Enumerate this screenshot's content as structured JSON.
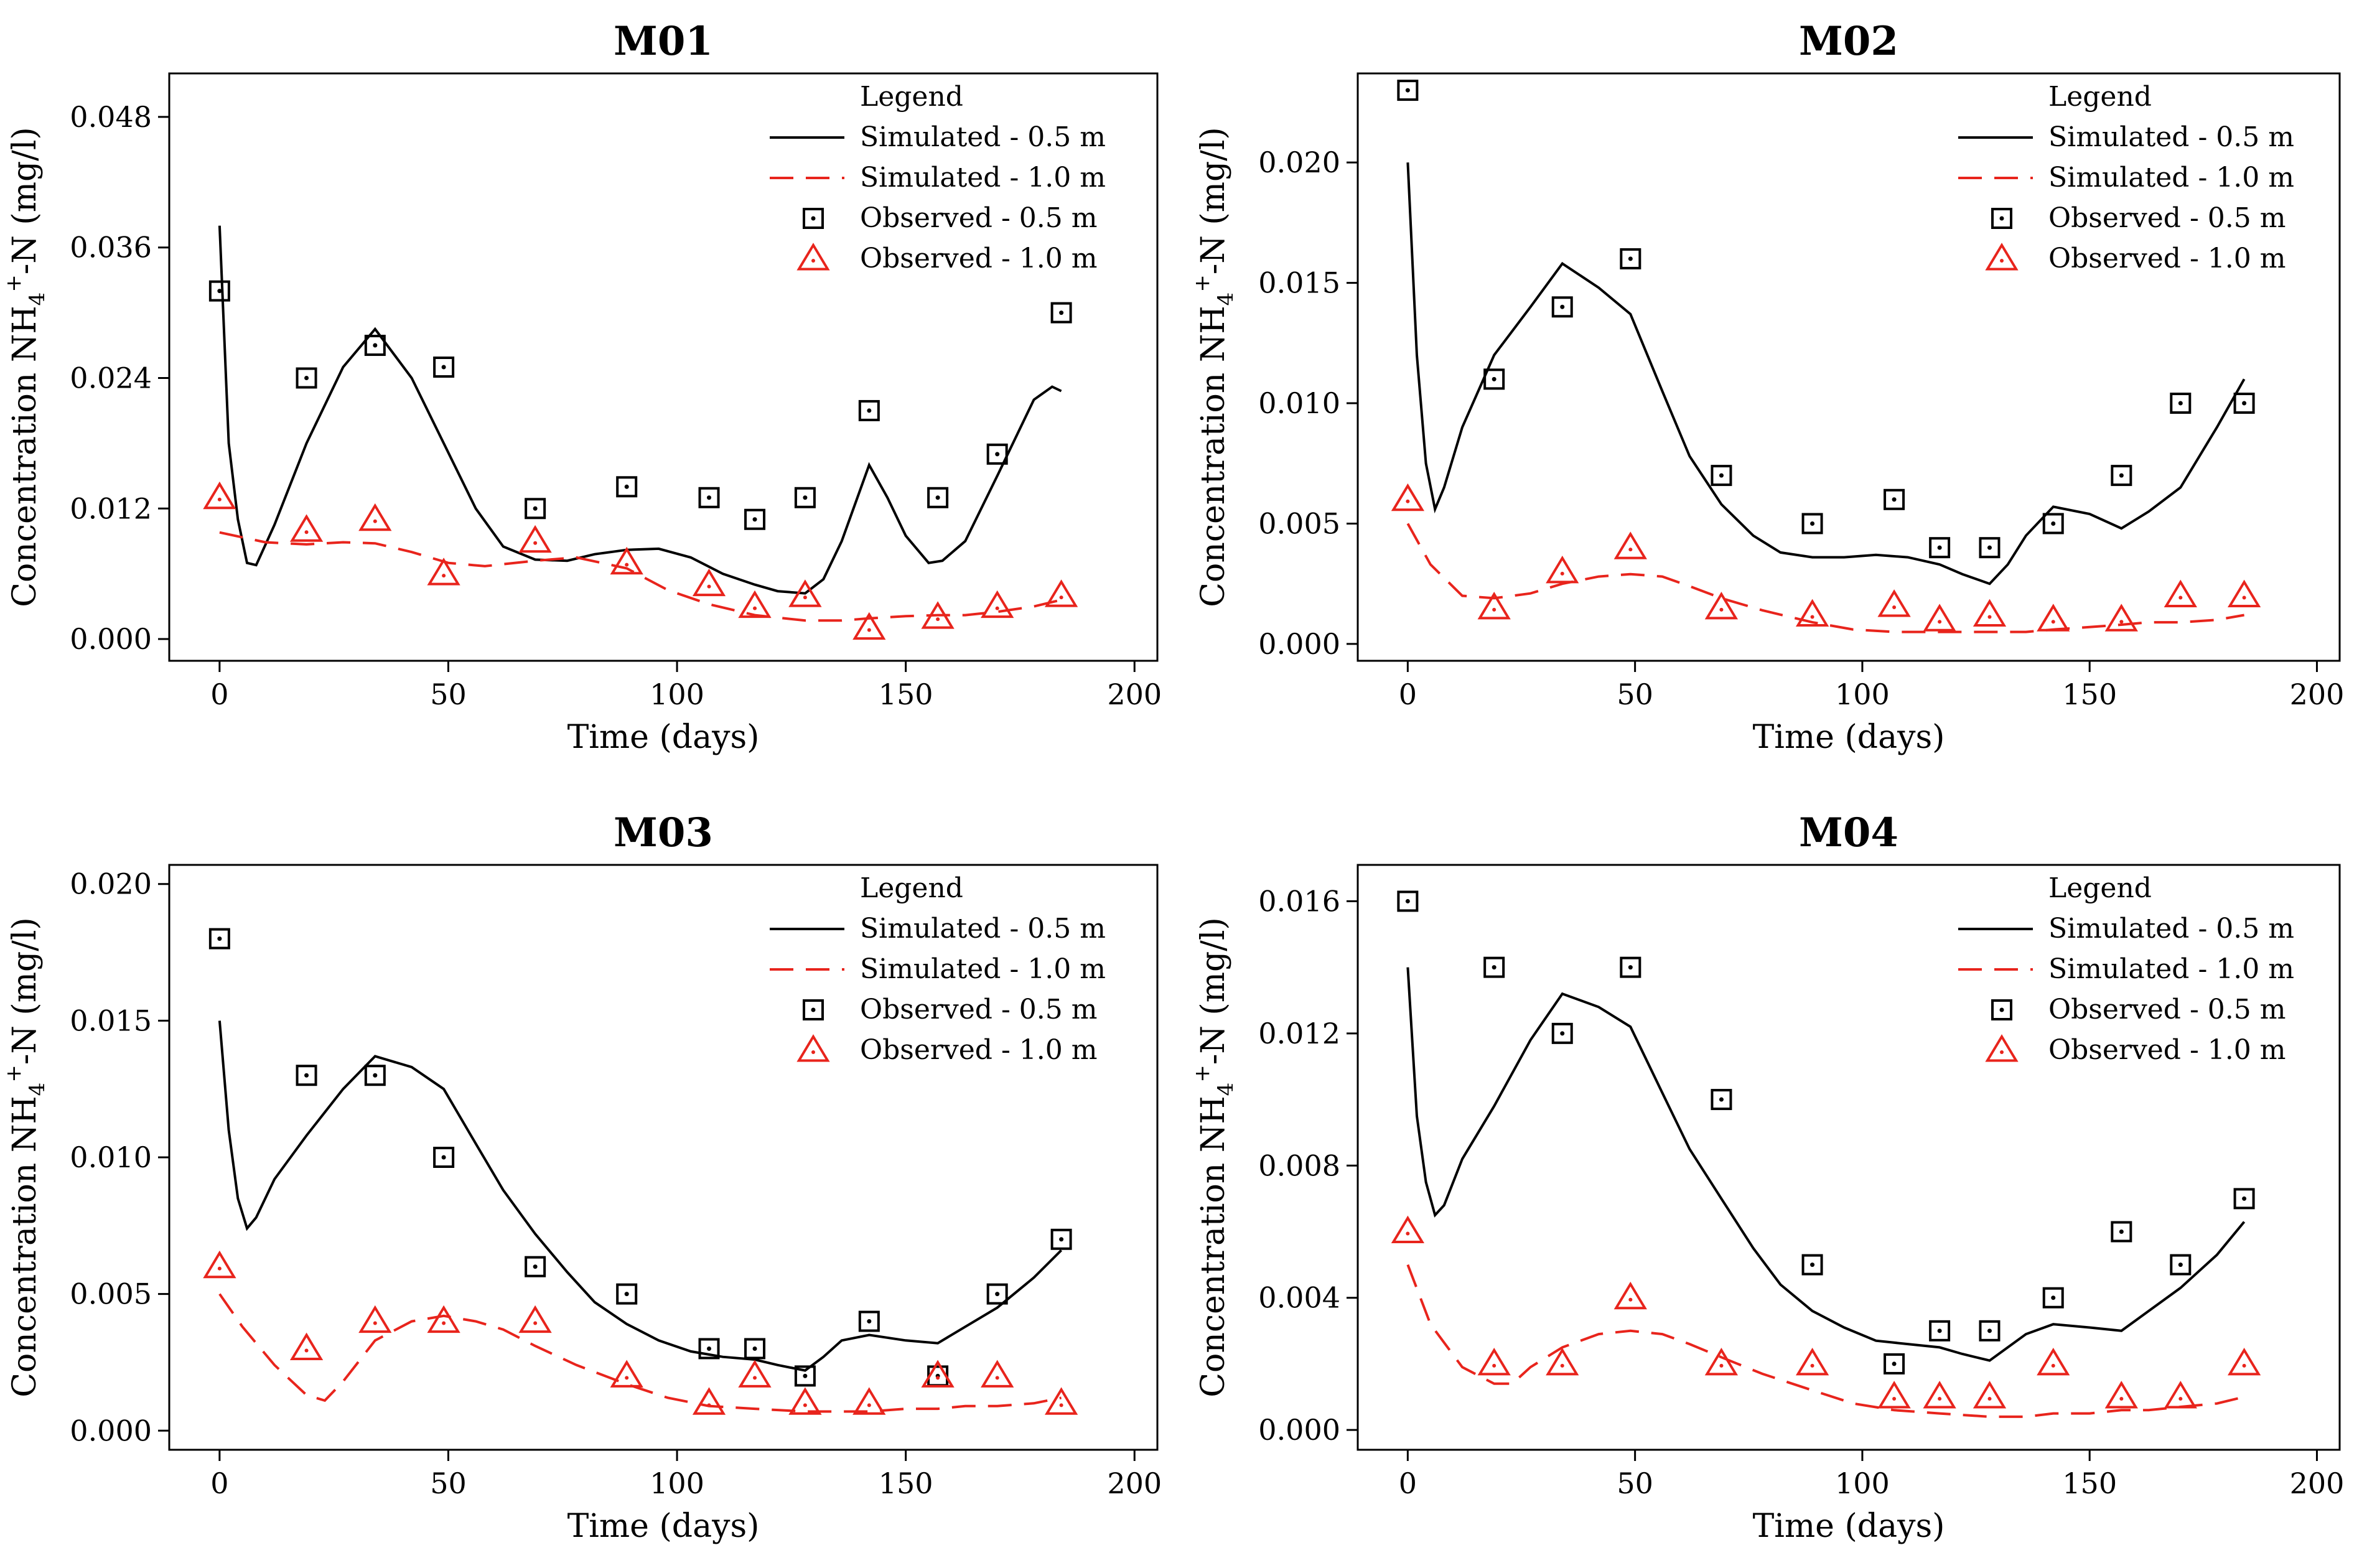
{
  "legend": {
    "title": "Legend",
    "entries": [
      "Simulated - 0.5 m",
      "Simulated - 1.0 m",
      "Observed - 0.5 m",
      "Observed - 1.0 m"
    ]
  },
  "colors": {
    "sim_05": "#000000",
    "sim_10": "#e8241c",
    "obs_05": "#000000",
    "obs_10": "#e8241c"
  },
  "chart_data": [
    {
      "type": "line",
      "title": "M01",
      "xlabel": "Time (days)",
      "ylabel": "Concentration NH4+-N (mg/l)",
      "xlim": [
        -11,
        205
      ],
      "ylim": [
        -0.002,
        0.052
      ],
      "xticks": [
        0,
        50,
        100,
        150,
        200
      ],
      "xtick_labels": [
        "0",
        "50",
        "100",
        "150",
        "200"
      ],
      "yticks": [
        0,
        0.012,
        0.024,
        0.036,
        0.048
      ],
      "ytick_labels": [
        "0.000",
        "0.012",
        "0.024",
        "0.036",
        "0.048"
      ],
      "series": [
        {
          "name": "Simulated - 0.5 m",
          "kind": "line",
          "x": [
            0,
            2,
            4,
            6,
            8,
            12,
            19,
            27,
            34,
            42,
            49,
            56,
            62,
            69,
            76,
            82,
            89,
            96,
            103,
            110,
            117,
            122,
            128,
            132,
            136,
            142,
            146,
            150,
            155,
            158,
            163,
            170,
            178,
            182,
            184
          ],
          "y": [
            0.038,
            0.018,
            0.011,
            0.007,
            0.0068,
            0.0105,
            0.018,
            0.025,
            0.0285,
            0.024,
            0.018,
            0.012,
            0.0085,
            0.0073,
            0.0072,
            0.0078,
            0.0082,
            0.0083,
            0.0075,
            0.006,
            0.005,
            0.0044,
            0.0042,
            0.0055,
            0.009,
            0.016,
            0.013,
            0.0095,
            0.007,
            0.0072,
            0.009,
            0.015,
            0.022,
            0.0232,
            0.0228
          ]
        },
        {
          "name": "Simulated - 1.0 m",
          "kind": "line",
          "x": [
            0,
            10,
            19,
            27,
            34,
            42,
            50,
            58,
            69,
            78,
            89,
            98,
            107,
            117,
            128,
            136,
            142,
            150,
            157,
            163,
            170,
            178,
            184
          ],
          "y": [
            0.0098,
            0.0089,
            0.0087,
            0.0089,
            0.0088,
            0.008,
            0.007,
            0.0067,
            0.0072,
            0.0075,
            0.0065,
            0.0045,
            0.0032,
            0.0022,
            0.0017,
            0.0017,
            0.0019,
            0.0021,
            0.0022,
            0.0022,
            0.0025,
            0.003,
            0.0036
          ]
        },
        {
          "name": "Observed - 0.5 m",
          "kind": "scatter",
          "marker": "square",
          "x": [
            0,
            19,
            34,
            49,
            69,
            89,
            107,
            117,
            128,
            142,
            157,
            170,
            184
          ],
          "y": [
            0.032,
            0.024,
            0.027,
            0.025,
            0.012,
            0.014,
            0.013,
            0.011,
            0.013,
            0.021,
            0.013,
            0.017,
            0.03
          ]
        },
        {
          "name": "Observed - 1.0 m",
          "kind": "scatter",
          "marker": "triangle",
          "x": [
            0,
            19,
            34,
            49,
            69,
            89,
            107,
            117,
            128,
            142,
            157,
            170,
            184
          ],
          "y": [
            0.013,
            0.01,
            0.011,
            0.006,
            0.009,
            0.007,
            0.005,
            0.003,
            0.004,
            0.001,
            0.002,
            0.003,
            0.004
          ]
        }
      ]
    },
    {
      "type": "line",
      "title": "M02",
      "xlabel": "Time (days)",
      "ylabel": "Concentration NH4+-N (mg/l)",
      "xlim": [
        -11,
        205
      ],
      "ylim": [
        -0.0007,
        0.0237
      ],
      "xticks": [
        0,
        50,
        100,
        150,
        200
      ],
      "xtick_labels": [
        "0",
        "50",
        "100",
        "150",
        "200"
      ],
      "yticks": [
        0,
        0.005,
        0.01,
        0.015,
        0.02
      ],
      "ytick_labels": [
        "0.000",
        "0.005",
        "0.010",
        "0.015",
        "0.020"
      ],
      "series": [
        {
          "name": "Simulated - 0.5 m",
          "kind": "line",
          "x": [
            0,
            2,
            4,
            6,
            8,
            12,
            19,
            27,
            34,
            42,
            49,
            56,
            62,
            69,
            76,
            82,
            89,
            96,
            103,
            110,
            117,
            122,
            128,
            132,
            136,
            142,
            150,
            157,
            163,
            170,
            178,
            184
          ],
          "y": [
            0.02,
            0.012,
            0.0075,
            0.0056,
            0.0065,
            0.009,
            0.012,
            0.014,
            0.0158,
            0.0148,
            0.0137,
            0.0105,
            0.0078,
            0.0058,
            0.0045,
            0.0038,
            0.0036,
            0.0036,
            0.0037,
            0.0036,
            0.0033,
            0.0029,
            0.0025,
            0.0033,
            0.0045,
            0.0057,
            0.0054,
            0.0048,
            0.0055,
            0.0065,
            0.009,
            0.011
          ]
        },
        {
          "name": "Simulated - 1.0 m",
          "kind": "line",
          "x": [
            0,
            5,
            12,
            19,
            27,
            34,
            42,
            49,
            56,
            62,
            69,
            78,
            89,
            98,
            107,
            117,
            128,
            136,
            142,
            150,
            157,
            163,
            170,
            178,
            184
          ],
          "y": [
            0.005,
            0.0033,
            0.002,
            0.0019,
            0.0021,
            0.0025,
            0.0028,
            0.0029,
            0.0028,
            0.0024,
            0.0019,
            0.0014,
            0.0009,
            0.0006,
            0.0005,
            0.0005,
            0.0005,
            0.0005,
            0.0006,
            0.0007,
            0.0008,
            0.0009,
            0.0009,
            0.001,
            0.0012
          ]
        },
        {
          "name": "Observed - 0.5 m",
          "kind": "scatter",
          "marker": "square",
          "x": [
            0,
            19,
            34,
            49,
            69,
            89,
            107,
            117,
            128,
            142,
            157,
            170,
            184
          ],
          "y": [
            0.023,
            0.011,
            0.014,
            0.016,
            0.007,
            0.005,
            0.006,
            0.004,
            0.004,
            0.005,
            0.007,
            0.01,
            0.01
          ]
        },
        {
          "name": "Observed - 1.0 m",
          "kind": "scatter",
          "marker": "triangle",
          "x": [
            0,
            19,
            34,
            49,
            69,
            89,
            107,
            117,
            128,
            142,
            157,
            170,
            184
          ],
          "y": [
            0.006,
            0.0015,
            0.003,
            0.004,
            0.0015,
            0.0012,
            0.0016,
            0.001,
            0.0012,
            0.001,
            0.001,
            0.002,
            0.002
          ]
        }
      ]
    },
    {
      "type": "line",
      "title": "M03",
      "xlabel": "Time (days)",
      "ylabel": "Concentration NH4+-N (mg/l)",
      "xlim": [
        -11,
        205
      ],
      "ylim": [
        -0.0007,
        0.0207
      ],
      "xticks": [
        0,
        50,
        100,
        150,
        200
      ],
      "xtick_labels": [
        "0",
        "50",
        "100",
        "150",
        "200"
      ],
      "yticks": [
        0,
        0.005,
        0.01,
        0.015,
        0.02
      ],
      "ytick_labels": [
        "0.000",
        "0.005",
        "0.010",
        "0.015",
        "0.020"
      ],
      "series": [
        {
          "name": "Simulated - 0.5 m",
          "kind": "line",
          "x": [
            0,
            2,
            4,
            6,
            8,
            12,
            19,
            27,
            34,
            42,
            49,
            56,
            62,
            69,
            76,
            82,
            89,
            96,
            103,
            110,
            117,
            122,
            128,
            132,
            136,
            142,
            150,
            157,
            163,
            170,
            178,
            184
          ],
          "y": [
            0.015,
            0.011,
            0.0085,
            0.0074,
            0.0078,
            0.0092,
            0.0108,
            0.0125,
            0.0137,
            0.0133,
            0.0125,
            0.0105,
            0.0088,
            0.0072,
            0.0058,
            0.0047,
            0.0039,
            0.0033,
            0.0029,
            0.0027,
            0.0026,
            0.0024,
            0.0022,
            0.0027,
            0.0033,
            0.0035,
            0.0033,
            0.0032,
            0.0038,
            0.0045,
            0.0056,
            0.0066
          ]
        },
        {
          "name": "Simulated - 1.0 m",
          "kind": "line",
          "x": [
            0,
            5,
            12,
            19,
            23,
            27,
            34,
            42,
            49,
            56,
            62,
            69,
            78,
            89,
            98,
            107,
            117,
            128,
            136,
            142,
            150,
            157,
            163,
            170,
            178,
            184
          ],
          "y": [
            0.005,
            0.0038,
            0.0024,
            0.0013,
            0.0011,
            0.0018,
            0.0033,
            0.004,
            0.0042,
            0.004,
            0.0037,
            0.0031,
            0.0024,
            0.0017,
            0.0012,
            0.0009,
            0.0008,
            0.0007,
            0.0007,
            0.0007,
            0.0008,
            0.0008,
            0.0009,
            0.0009,
            0.001,
            0.0012
          ]
        },
        {
          "name": "Observed - 0.5 m",
          "kind": "scatter",
          "marker": "square",
          "x": [
            0,
            19,
            34,
            49,
            69,
            89,
            107,
            117,
            128,
            142,
            157,
            170,
            184
          ],
          "y": [
            0.018,
            0.013,
            0.013,
            0.01,
            0.006,
            0.005,
            0.003,
            0.003,
            0.002,
            0.004,
            0.002,
            0.005,
            0.007
          ]
        },
        {
          "name": "Observed - 1.0 m",
          "kind": "scatter",
          "marker": "triangle",
          "x": [
            0,
            19,
            34,
            49,
            69,
            89,
            107,
            117,
            128,
            142,
            157,
            170,
            184
          ],
          "y": [
            0.006,
            0.003,
            0.004,
            0.004,
            0.004,
            0.002,
            0.001,
            0.002,
            0.001,
            0.001,
            0.002,
            0.002,
            0.001
          ]
        }
      ]
    },
    {
      "type": "line",
      "title": "M04",
      "xlabel": "Time (days)",
      "ylabel": "Concentration NH4+-N (mg/l)",
      "xlim": [
        -11,
        205
      ],
      "ylim": [
        -0.0006,
        0.0171
      ],
      "xticks": [
        0,
        50,
        100,
        150,
        200
      ],
      "xtick_labels": [
        "0",
        "50",
        "100",
        "150",
        "200"
      ],
      "yticks": [
        0,
        0.004,
        0.008,
        0.012,
        0.016
      ],
      "ytick_labels": [
        "0.000",
        "0.004",
        "0.008",
        "0.012",
        "0.016"
      ],
      "series": [
        {
          "name": "Simulated - 0.5 m",
          "kind": "line",
          "x": [
            0,
            2,
            4,
            6,
            8,
            12,
            19,
            27,
            34,
            42,
            49,
            56,
            62,
            69,
            76,
            82,
            89,
            96,
            103,
            110,
            117,
            122,
            128,
            132,
            136,
            142,
            150,
            157,
            163,
            170,
            178,
            184
          ],
          "y": [
            0.014,
            0.0095,
            0.0075,
            0.0065,
            0.0068,
            0.0082,
            0.0098,
            0.0118,
            0.0132,
            0.0128,
            0.0122,
            0.0102,
            0.0085,
            0.007,
            0.0055,
            0.0044,
            0.0036,
            0.0031,
            0.0027,
            0.0026,
            0.0025,
            0.0023,
            0.0021,
            0.0025,
            0.0029,
            0.0032,
            0.0031,
            0.003,
            0.0036,
            0.0043,
            0.0053,
            0.0063
          ]
        },
        {
          "name": "Simulated - 1.0 m",
          "kind": "line",
          "x": [
            0,
            5,
            12,
            19,
            23,
            27,
            34,
            42,
            49,
            56,
            62,
            69,
            78,
            89,
            98,
            107,
            117,
            128,
            136,
            142,
            150,
            157,
            163,
            170,
            178,
            184
          ],
          "y": [
            0.005,
            0.0032,
            0.0019,
            0.0014,
            0.0014,
            0.0019,
            0.0025,
            0.0029,
            0.003,
            0.0029,
            0.0026,
            0.0022,
            0.0017,
            0.0012,
            0.0008,
            0.0006,
            0.0005,
            0.0004,
            0.0004,
            0.0005,
            0.0005,
            0.0006,
            0.0006,
            0.0007,
            0.0008,
            0.001
          ]
        },
        {
          "name": "Observed - 0.5 m",
          "kind": "scatter",
          "marker": "square",
          "x": [
            0,
            19,
            34,
            49,
            69,
            89,
            107,
            117,
            128,
            142,
            157,
            170,
            184
          ],
          "y": [
            0.016,
            0.014,
            0.012,
            0.014,
            0.01,
            0.005,
            0.002,
            0.003,
            0.003,
            0.004,
            0.006,
            0.005,
            0.007
          ]
        },
        {
          "name": "Observed - 1.0 m",
          "kind": "scatter",
          "marker": "triangle",
          "x": [
            0,
            19,
            34,
            49,
            69,
            89,
            107,
            117,
            128,
            142,
            157,
            170,
            184
          ],
          "y": [
            0.006,
            0.002,
            0.002,
            0.004,
            0.002,
            0.002,
            0.001,
            0.001,
            0.001,
            0.002,
            0.001,
            0.001,
            0.002
          ]
        }
      ]
    }
  ]
}
